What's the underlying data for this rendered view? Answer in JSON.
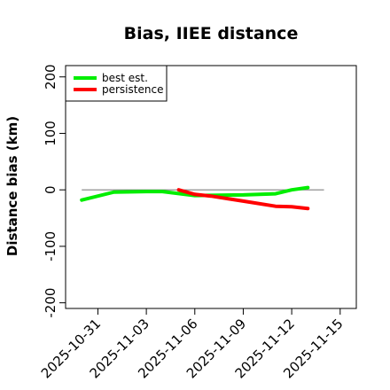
{
  "chart_data": {
    "type": "line",
    "title": "Bias, IIEE distance",
    "xlabel": "",
    "ylabel": "Distance bias (km)",
    "ylim": [
      -210,
      220
    ],
    "yticks": [
      -200,
      -100,
      0,
      100,
      200
    ],
    "xlim": [
      "2025-10-29",
      "2025-11-16"
    ],
    "xticks": [
      "2025-10-31",
      "2025-11-03",
      "2025-11-06",
      "2025-11-09",
      "2025-11-12",
      "2025-11-15"
    ],
    "reference_line": {
      "y": 0,
      "from": "2025-10-30",
      "to": "2025-11-14",
      "color": "#808080"
    },
    "legend": {
      "placement": "top-left",
      "entries": [
        "best est.",
        "persistence"
      ]
    },
    "series": [
      {
        "name": "best est.",
        "color": "#00ee00",
        "points": [
          {
            "x": "2025-10-30",
            "y": -18
          },
          {
            "x": "2025-11-01",
            "y": -4
          },
          {
            "x": "2025-11-03",
            "y": -3
          },
          {
            "x": "2025-11-04",
            "y": -3
          },
          {
            "x": "2025-11-06",
            "y": -10
          },
          {
            "x": "2025-11-09",
            "y": -9
          },
          {
            "x": "2025-11-11",
            "y": -7
          },
          {
            "x": "2025-11-12",
            "y": 0
          },
          {
            "x": "2025-11-13",
            "y": 4
          }
        ]
      },
      {
        "name": "persistence",
        "color": "#ff0000",
        "points": [
          {
            "x": "2025-11-05",
            "y": 0
          },
          {
            "x": "2025-11-06",
            "y": -8
          },
          {
            "x": "2025-11-07",
            "y": -11
          },
          {
            "x": "2025-11-09",
            "y": -20
          },
          {
            "x": "2025-11-11",
            "y": -29
          },
          {
            "x": "2025-11-12",
            "y": -30
          },
          {
            "x": "2025-11-13",
            "y": -33
          }
        ]
      }
    ]
  }
}
